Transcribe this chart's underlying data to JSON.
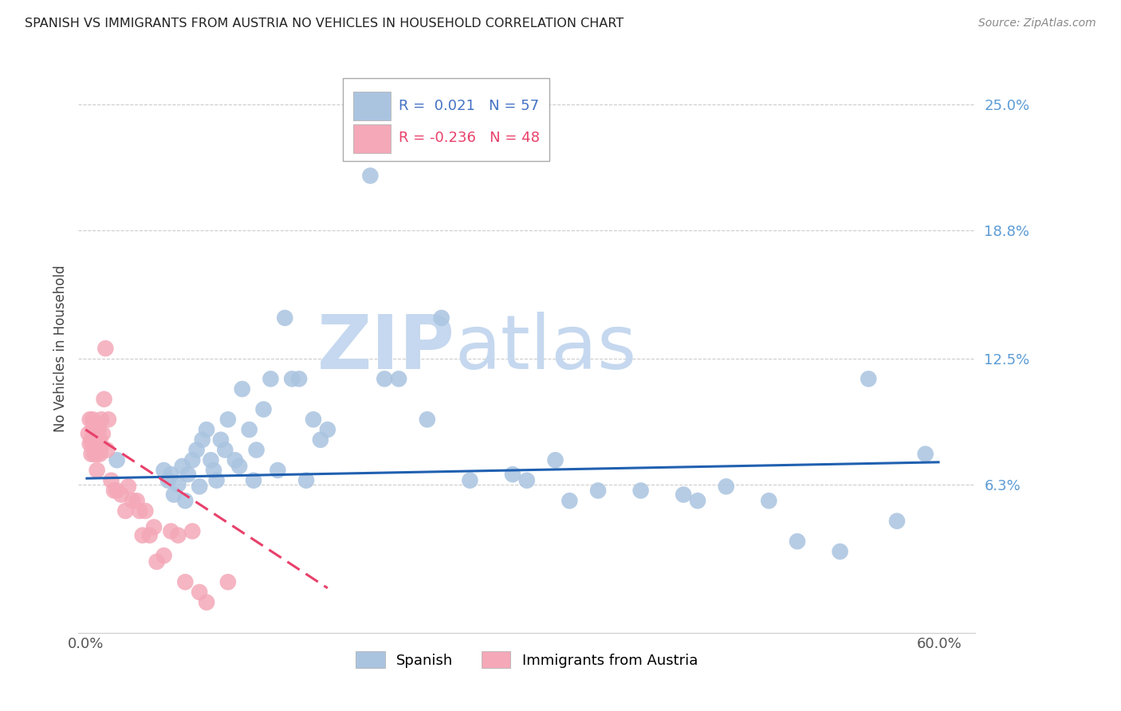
{
  "title": "SPANISH VS IMMIGRANTS FROM AUSTRIA NO VEHICLES IN HOUSEHOLD CORRELATION CHART",
  "source": "Source: ZipAtlas.com",
  "ylabel": "No Vehicles in Household",
  "xlim": [
    -0.005,
    0.625
  ],
  "ylim": [
    -0.01,
    0.27
  ],
  "xticks": [
    0.0,
    0.1,
    0.2,
    0.3,
    0.4,
    0.5,
    0.6
  ],
  "xticklabels": [
    "0.0%",
    "",
    "",
    "",
    "",
    "",
    "60.0%"
  ],
  "ytick_positions": [
    0.063,
    0.125,
    0.188,
    0.25
  ],
  "ytick_labels": [
    "6.3%",
    "12.5%",
    "18.8%",
    "25.0%"
  ],
  "spanish_R": 0.021,
  "spanish_N": 57,
  "austria_R": -0.236,
  "austria_N": 48,
  "spanish_color": "#aac4e0",
  "austria_color": "#f4a8b8",
  "trendline_spanish_color": "#2060b0",
  "trendline_austria_color": "#e8406a",
  "watermark_zip_color": "#c5d8ef",
  "watermark_atlas_color": "#c5d8ef",
  "background_color": "#ffffff",
  "title_fontsize": 11.5,
  "source_fontsize": 10,
  "legend_text_color_blue": "#4472c4",
  "legend_text_color_pink": "#e8406a",
  "spanish_x": [
    0.022,
    0.055,
    0.058,
    0.06,
    0.062,
    0.065,
    0.068,
    0.07,
    0.072,
    0.075,
    0.078,
    0.08,
    0.082,
    0.085,
    0.088,
    0.09,
    0.092,
    0.095,
    0.098,
    0.1,
    0.105,
    0.108,
    0.11,
    0.115,
    0.118,
    0.12,
    0.125,
    0.13,
    0.135,
    0.14,
    0.145,
    0.15,
    0.155,
    0.16,
    0.165,
    0.17,
    0.2,
    0.21,
    0.22,
    0.24,
    0.25,
    0.27,
    0.3,
    0.31,
    0.33,
    0.34,
    0.36,
    0.39,
    0.42,
    0.43,
    0.45,
    0.48,
    0.5,
    0.53,
    0.55,
    0.57,
    0.59
  ],
  "spanish_y": [
    0.075,
    0.07,
    0.065,
    0.068,
    0.058,
    0.063,
    0.072,
    0.055,
    0.068,
    0.075,
    0.08,
    0.062,
    0.085,
    0.09,
    0.075,
    0.07,
    0.065,
    0.085,
    0.08,
    0.095,
    0.075,
    0.072,
    0.11,
    0.09,
    0.065,
    0.08,
    0.1,
    0.115,
    0.07,
    0.145,
    0.115,
    0.115,
    0.065,
    0.095,
    0.085,
    0.09,
    0.215,
    0.115,
    0.115,
    0.095,
    0.145,
    0.065,
    0.068,
    0.065,
    0.075,
    0.055,
    0.06,
    0.06,
    0.058,
    0.055,
    0.062,
    0.055,
    0.035,
    0.03,
    0.115,
    0.045,
    0.078
  ],
  "austria_x": [
    0.002,
    0.003,
    0.003,
    0.004,
    0.004,
    0.005,
    0.005,
    0.005,
    0.006,
    0.006,
    0.007,
    0.007,
    0.008,
    0.008,
    0.008,
    0.009,
    0.009,
    0.01,
    0.01,
    0.011,
    0.011,
    0.012,
    0.013,
    0.014,
    0.015,
    0.016,
    0.018,
    0.02,
    0.022,
    0.025,
    0.028,
    0.03,
    0.033,
    0.036,
    0.038,
    0.04,
    0.042,
    0.045,
    0.048,
    0.05,
    0.055,
    0.06,
    0.065,
    0.07,
    0.075,
    0.08,
    0.085,
    0.1
  ],
  "austria_y": [
    0.088,
    0.083,
    0.095,
    0.085,
    0.078,
    0.095,
    0.09,
    0.082,
    0.088,
    0.078,
    0.092,
    0.08,
    0.085,
    0.078,
    0.07,
    0.09,
    0.082,
    0.085,
    0.078,
    0.095,
    0.082,
    0.088,
    0.105,
    0.13,
    0.08,
    0.095,
    0.065,
    0.06,
    0.06,
    0.058,
    0.05,
    0.062,
    0.055,
    0.055,
    0.05,
    0.038,
    0.05,
    0.038,
    0.042,
    0.025,
    0.028,
    0.04,
    0.038,
    0.015,
    0.04,
    0.01,
    0.005,
    0.015
  ],
  "trendline_sp_x0": 0.0,
  "trendline_sp_x1": 0.6,
  "trendline_sp_y0": 0.066,
  "trendline_sp_y1": 0.074,
  "trendline_at_x0": 0.0,
  "trendline_at_x1": 0.17,
  "trendline_at_y0": 0.09,
  "trendline_at_y1": 0.012
}
